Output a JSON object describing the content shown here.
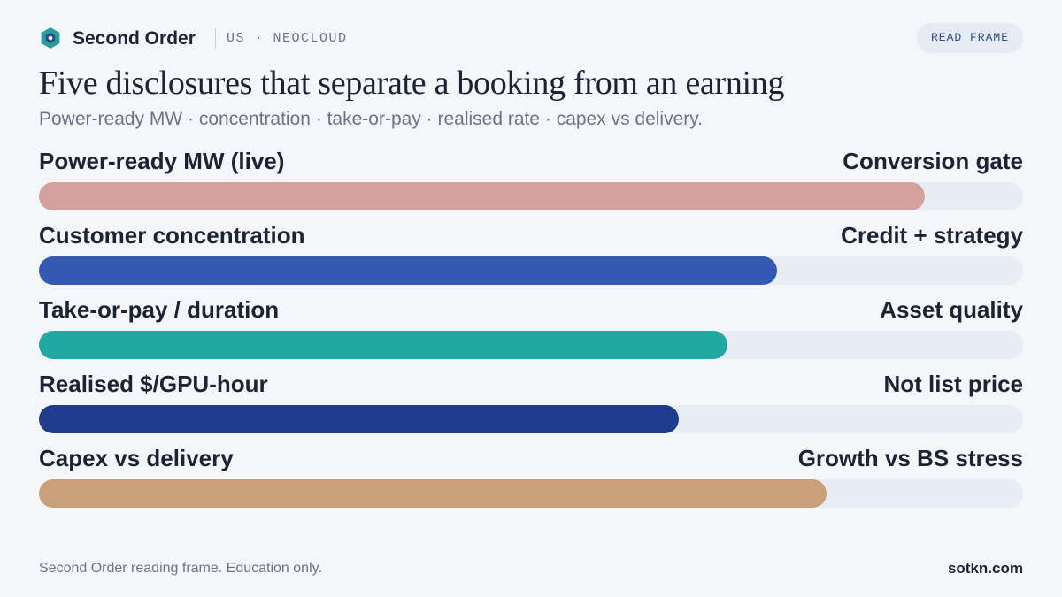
{
  "header": {
    "brand_name": "Second Order",
    "tag": "US · NEOCLOUD",
    "read_frame_label": "READ FRAME",
    "logo_icon": "hexagon-logo-icon"
  },
  "title": "Five disclosures that separate a booking from an earning",
  "subtitle": "Power-ready MW · concentration · take-or-pay · realised rate · capex vs delivery.",
  "chart_data": {
    "type": "bar",
    "orientation": "horizontal",
    "categories": [
      "Power-ready MW (live)",
      "Customer concentration",
      "Take-or-pay / duration",
      "Realised $/GPU-hour",
      "Capex vs delivery"
    ],
    "annotations": [
      "Conversion gate",
      "Credit + strategy",
      "Asset quality",
      "Not list price",
      "Growth vs BS stress"
    ],
    "values": [
      0.9,
      0.75,
      0.7,
      0.65,
      0.8
    ],
    "xlim": [
      0,
      1
    ],
    "colors": [
      "#d4a19e",
      "#3459b5",
      "#20a8a3",
      "#1f3c8c",
      "#c9a07a"
    ],
    "track_color": "#e8ecf4",
    "grid": false,
    "legend": "none"
  },
  "footer": {
    "note": "Second Order reading frame. Education only.",
    "site": "sotkn.com"
  }
}
